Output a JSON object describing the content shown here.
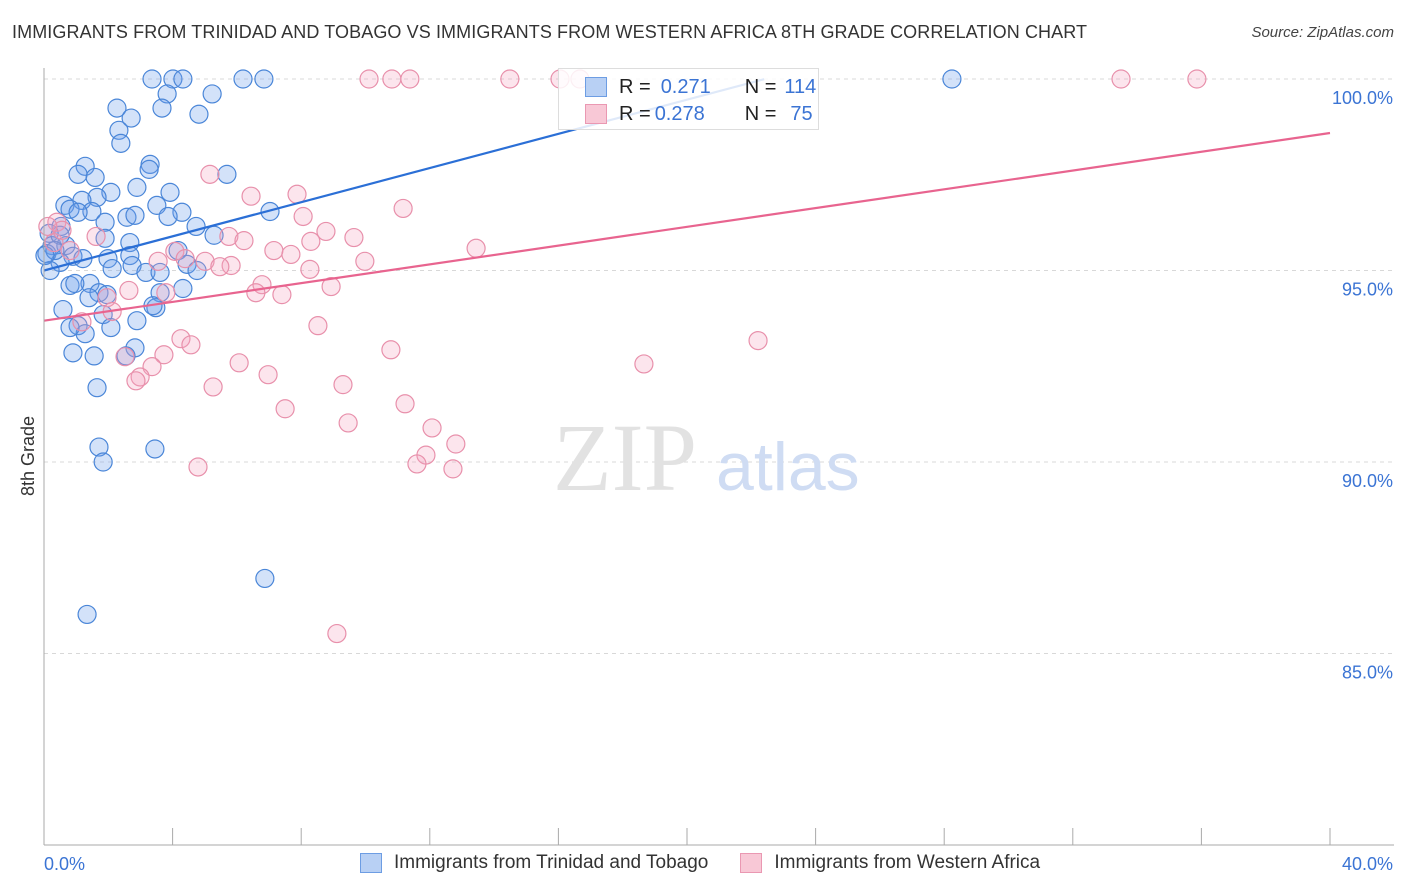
{
  "header": {
    "title": "IMMIGRANTS FROM TRINIDAD AND TOBAGO VS IMMIGRANTS FROM WESTERN AFRICA 8TH GRADE CORRELATION CHART",
    "source": "Source: ZipAtlas.com"
  },
  "watermark": {
    "zip": "ZIP",
    "atlas": "atlas"
  },
  "legend": {
    "r_label": "R =",
    "n_label": "N =",
    "series": [
      {
        "r": "0.271",
        "n": "114"
      },
      {
        "r": "0.278",
        "n": "75"
      }
    ]
  },
  "colors": {
    "blue": "#4a86d8",
    "blue_fill": "rgba(110,160,235,0.30)",
    "blue_line": "#2b6fd6",
    "pink": "#e890ab",
    "pink_fill": "rgba(245,160,190,0.28)",
    "pink_line": "#e8648f"
  },
  "chart_data": {
    "type": "scatter",
    "title": "IMMIGRANTS FROM TRINIDAD AND TOBAGO VS IMMIGRANTS FROM WESTERN AFRICA 8TH GRADE CORRELATION CHART",
    "xlabel": "",
    "ylabel": "8th Grade",
    "xlim": [
      0,
      40
    ],
    "ylim": [
      80,
      100
    ],
    "x_tick_labels": [
      "0.0%",
      "40.0%"
    ],
    "y_ticks": [
      {
        "v": 100,
        "label": "100.0%"
      },
      {
        "v": 95,
        "label": "95.0%"
      },
      {
        "v": 90,
        "label": "90.0%"
      },
      {
        "v": 85,
        "label": "85.0%"
      }
    ],
    "grid": true,
    "legend_position": "top-center",
    "series": [
      {
        "name": "Immigrants from Trinidad and Tobago",
        "color": "blue",
        "trend": {
          "intercept": 95.0,
          "slope": 0.223,
          "x_end": 22.4
        },
        "points": [
          [
            3.36,
            100
          ],
          [
            4.01,
            100
          ],
          [
            4.32,
            100
          ],
          [
            6.19,
            100
          ],
          [
            6.84,
            100
          ],
          [
            28.24,
            100
          ],
          [
            3.83,
            99.61
          ],
          [
            5.23,
            99.61
          ],
          [
            2.27,
            99.24
          ],
          [
            3.67,
            99.24
          ],
          [
            4.82,
            99.08
          ],
          [
            2.71,
            98.98
          ],
          [
            2.33,
            98.66
          ],
          [
            2.39,
            98.32
          ],
          [
            3.3,
            97.77
          ],
          [
            3.27,
            97.64
          ],
          [
            1.28,
            97.72
          ],
          [
            1.06,
            97.51
          ],
          [
            1.59,
            97.43
          ],
          [
            2.08,
            97.04
          ],
          [
            2.89,
            97.17
          ],
          [
            3.92,
            97.04
          ],
          [
            1.65,
            96.91
          ],
          [
            1.18,
            96.83
          ],
          [
            0.65,
            96.7
          ],
          [
            0.81,
            96.6
          ],
          [
            1.49,
            96.54
          ],
          [
            1.06,
            96.52
          ],
          [
            3.51,
            96.7
          ],
          [
            4.29,
            96.52
          ],
          [
            2.58,
            96.39
          ],
          [
            2.83,
            96.44
          ],
          [
            3.86,
            96.41
          ],
          [
            7.03,
            96.54
          ],
          [
            4.73,
            96.15
          ],
          [
            1.9,
            96.26
          ],
          [
            0.53,
            96.15
          ],
          [
            5.29,
            95.92
          ],
          [
            5.69,
            97.51
          ],
          [
            0.16,
            95.97
          ],
          [
            1.9,
            95.84
          ],
          [
            2.67,
            95.73
          ],
          [
            4.17,
            95.52
          ],
          [
            0.25,
            95.65
          ],
          [
            0.09,
            95.44
          ],
          [
            0.68,
            95.65
          ],
          [
            0.9,
            95.37
          ],
          [
            1.21,
            95.31
          ],
          [
            1.99,
            95.31
          ],
          [
            2.67,
            95.39
          ],
          [
            0.5,
            95.21
          ],
          [
            2.74,
            95.13
          ],
          [
            3.17,
            94.95
          ],
          [
            3.61,
            94.95
          ],
          [
            4.45,
            95.16
          ],
          [
            4.76,
            95.0
          ],
          [
            2.12,
            95.05
          ],
          [
            0.19,
            95.0
          ],
          [
            1.43,
            94.66
          ],
          [
            0.81,
            94.61
          ],
          [
            0.96,
            94.66
          ],
          [
            1.71,
            94.42
          ],
          [
            1.96,
            94.37
          ],
          [
            1.4,
            94.29
          ],
          [
            4.32,
            94.53
          ],
          [
            3.61,
            94.42
          ],
          [
            3.48,
            94.03
          ],
          [
            3.39,
            94.08
          ],
          [
            0.59,
            93.98
          ],
          [
            1.84,
            93.85
          ],
          [
            2.89,
            93.69
          ],
          [
            2.08,
            93.51
          ],
          [
            1.06,
            93.56
          ],
          [
            1.28,
            93.35
          ],
          [
            0.81,
            93.51
          ],
          [
            0.9,
            92.85
          ],
          [
            1.56,
            92.77
          ],
          [
            2.83,
            92.98
          ],
          [
            2.55,
            92.77
          ],
          [
            1.65,
            91.94
          ],
          [
            1.71,
            90.39
          ],
          [
            1.84,
            90.0
          ],
          [
            3.45,
            90.34
          ],
          [
            6.87,
            86.96
          ],
          [
            1.34,
            86.02
          ],
          [
            0.5,
            95.92
          ],
          [
            0.34,
            95.52
          ],
          [
            0.03,
            95.39
          ]
        ]
      },
      {
        "name": "Immigrants from Western Africa",
        "color": "pink",
        "trend": {
          "intercept": 93.69,
          "slope": 0.1225,
          "x_end": 40
        },
        "points": [
          [
            10.11,
            100
          ],
          [
            10.82,
            100
          ],
          [
            11.38,
            100
          ],
          [
            14.49,
            100
          ],
          [
            16.05,
            100
          ],
          [
            16.67,
            100
          ],
          [
            33.5,
            100
          ],
          [
            35.86,
            100
          ],
          [
            5.16,
            97.51
          ],
          [
            6.44,
            96.94
          ],
          [
            7.87,
            96.99
          ],
          [
            11.17,
            96.62
          ],
          [
            8.06,
            96.41
          ],
          [
            0.4,
            96.26
          ],
          [
            1.62,
            95.89
          ],
          [
            5.75,
            95.89
          ],
          [
            6.22,
            95.78
          ],
          [
            8.77,
            96.02
          ],
          [
            9.64,
            95.86
          ],
          [
            7.15,
            95.52
          ],
          [
            7.68,
            95.42
          ],
          [
            8.3,
            95.76
          ],
          [
            13.44,
            95.58
          ],
          [
            4.07,
            95.5
          ],
          [
            5.01,
            95.24
          ],
          [
            5.82,
            95.13
          ],
          [
            3.55,
            95.24
          ],
          [
            4.39,
            95.31
          ],
          [
            5.47,
            95.1
          ],
          [
            8.27,
            95.03
          ],
          [
            9.98,
            95.24
          ],
          [
            6.78,
            94.63
          ],
          [
            8.93,
            94.58
          ],
          [
            6.59,
            94.42
          ],
          [
            7.4,
            94.37
          ],
          [
            2.64,
            94.48
          ],
          [
            3.79,
            94.42
          ],
          [
            1.96,
            94.29
          ],
          [
            2.12,
            93.93
          ],
          [
            1.18,
            93.66
          ],
          [
            8.52,
            93.56
          ],
          [
            4.26,
            93.22
          ],
          [
            4.57,
            93.06
          ],
          [
            3.73,
            92.8
          ],
          [
            2.52,
            92.75
          ],
          [
            3.36,
            92.49
          ],
          [
            2.99,
            92.22
          ],
          [
            2.86,
            92.12
          ],
          [
            6.07,
            92.59
          ],
          [
            6.97,
            92.28
          ],
          [
            9.3,
            92.02
          ],
          [
            10.79,
            92.93
          ],
          [
            18.66,
            92.56
          ],
          [
            22.21,
            93.17
          ],
          [
            5.26,
            91.96
          ],
          [
            7.5,
            91.39
          ],
          [
            11.23,
            91.52
          ],
          [
            9.46,
            91.02
          ],
          [
            12.07,
            90.89
          ],
          [
            12.81,
            90.47
          ],
          [
            11.88,
            90.18
          ],
          [
            11.6,
            89.95
          ],
          [
            12.72,
            89.82
          ],
          [
            4.79,
            89.87
          ],
          [
            9.11,
            85.52
          ],
          [
            0.31,
            95.73
          ],
          [
            0.56,
            96.05
          ],
          [
            0.12,
            96.15
          ],
          [
            0.81,
            95.52
          ]
        ]
      }
    ]
  }
}
